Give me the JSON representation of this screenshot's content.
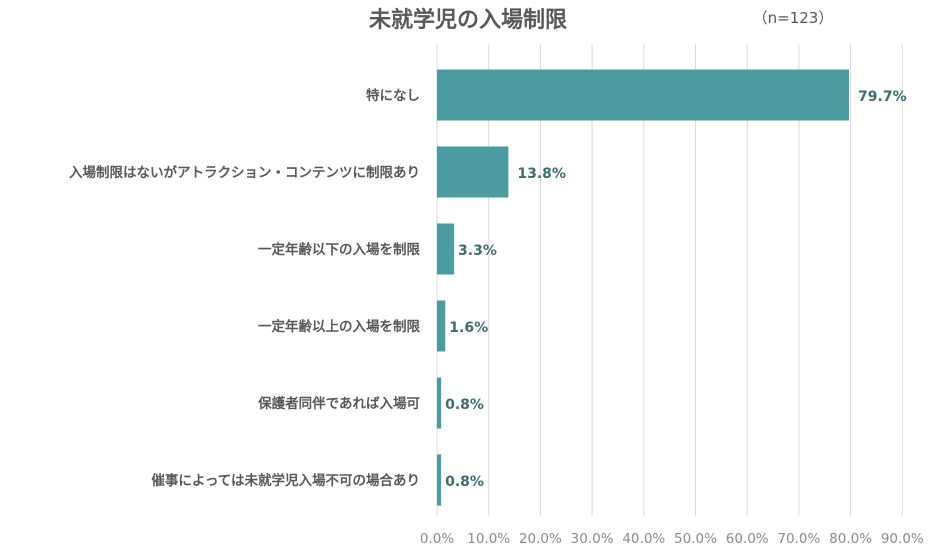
{
  "chart_data": {
    "type": "bar",
    "orientation": "horizontal",
    "title": "未就学児の入場制限",
    "note": "（n=123）",
    "categories": [
      "特になし",
      "入場制限はないがアトラクション・コンテンツに制限あり",
      "一定年齢以下の入場を制限",
      "一定年齢以上の入場を制限",
      "保護者同伴であれば入場可",
      "催事によっては未就学児入場不可の場合あり"
    ],
    "values": [
      79.7,
      13.8,
      3.3,
      1.6,
      0.8,
      0.8
    ],
    "value_labels": [
      "79.7%",
      "13.8%",
      "3.3%",
      "1.6%",
      "0.8%",
      "0.8%"
    ],
    "xlim": [
      0,
      90
    ],
    "xticks": [
      0,
      10,
      20,
      30,
      40,
      50,
      60,
      70,
      80,
      90
    ],
    "xtick_labels": [
      "0.0%",
      "10.0%",
      "20.0%",
      "30.0%",
      "40.0%",
      "50.0%",
      "60.0%",
      "70.0%",
      "80.0%",
      "90.0%"
    ],
    "grid": true,
    "bar_color": "#4a9c9e"
  }
}
